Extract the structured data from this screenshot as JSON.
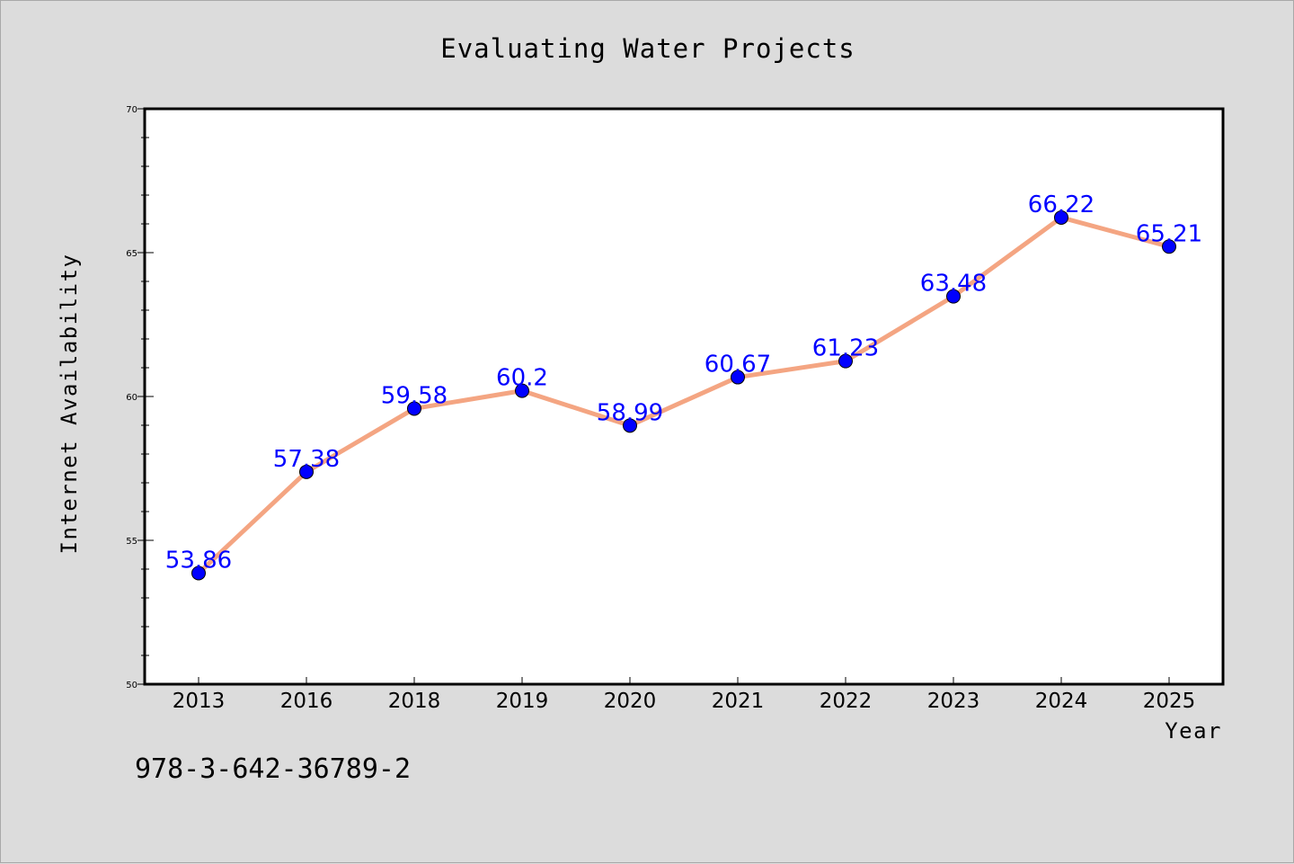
{
  "chart_data": {
    "type": "line",
    "title": "Evaluating Water Projects",
    "xlabel": "Year",
    "ylabel": "Internet Availability",
    "categories": [
      "2013",
      "2016",
      "2018",
      "2019",
      "2020",
      "2021",
      "2022",
      "2023",
      "2024",
      "2025"
    ],
    "series": [
      {
        "values": [
          53.86,
          57.38,
          59.58,
          60.2,
          58.99,
          60.67,
          61.23,
          63.48,
          66.22,
          65.21
        ],
        "labels": [
          "53.86",
          "57.38",
          "59.58",
          "60.2",
          "58.99",
          "60.67",
          "61.23",
          "63.48",
          "66.22",
          "65.21"
        ]
      }
    ],
    "ylim": [
      50,
      70
    ],
    "yticks": [
      "50",
      "55",
      "60",
      "65",
      "70"
    ],
    "grid": false,
    "line_color": "#f4a582",
    "marker_color": "#0000ff",
    "label_color": "#0000ff"
  },
  "footer": {
    "code": "978-3-642-36789-2"
  },
  "colors": {
    "background": "#dcdcdc",
    "plot_area": "#ffffff",
    "axis": "#000000"
  }
}
